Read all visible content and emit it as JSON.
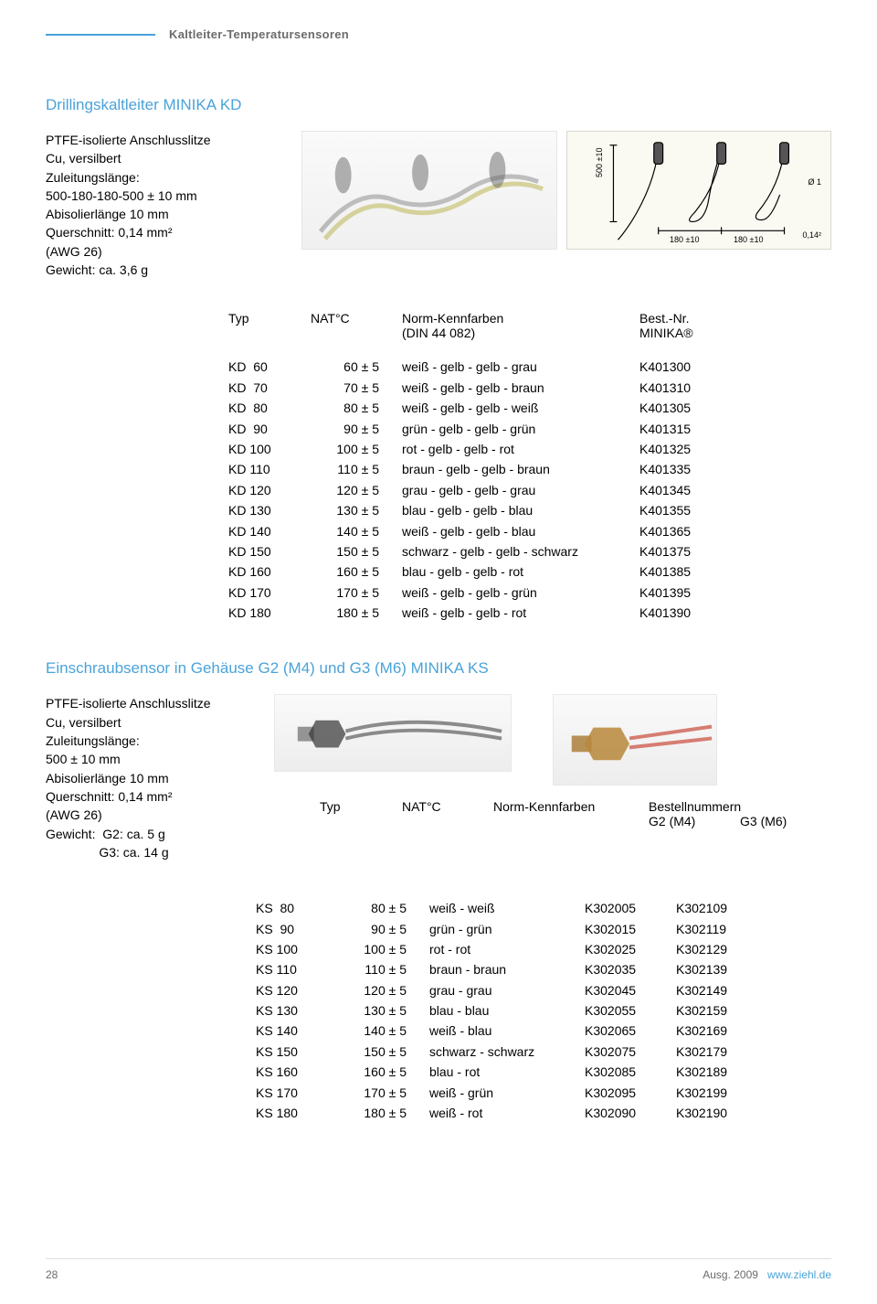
{
  "header": {
    "category": "Kaltleiter-Temperatursensoren",
    "line_color": "#4aa3d8"
  },
  "section1": {
    "title": "Drillingskaltleiter MINIKA KD",
    "specs": [
      "PTFE-isolierte Anschlusslitze",
      "Cu, versilbert",
      "Zuleitungslänge:",
      "500-180-180-500 ± 10 mm",
      "Abisolierlänge 10 mm",
      "Querschnitt: 0,14 mm²",
      "(AWG 26)",
      "Gewicht: ca. 3,6 g"
    ],
    "diagram": {
      "dim_height": "500 ±10",
      "dim_spacing_1": "180 ±10",
      "dim_spacing_2": "180 ±10",
      "diameter": "Ø 1",
      "cross": "0,14²"
    },
    "table": {
      "header": {
        "typ": "Typ",
        "nat": "NAT°C",
        "norm": "Norm-Kennfarben",
        "norm_sub": "(DIN 44 082)",
        "best": "Best.-Nr.",
        "best_sub": "MINIKA®"
      },
      "rows": [
        {
          "typ": "KD  60",
          "nat": "60 ± 5",
          "norm": "weiß - gelb - gelb - grau",
          "best": "K401300"
        },
        {
          "typ": "KD  70",
          "nat": "70 ± 5",
          "norm": "weiß - gelb - gelb - braun",
          "best": "K401310"
        },
        {
          "typ": "KD  80",
          "nat": "80 ± 5",
          "norm": "weiß - gelb - gelb - weiß",
          "best": "K401305"
        },
        {
          "typ": "KD  90",
          "nat": "90 ± 5",
          "norm": "grün - gelb - gelb - grün",
          "best": "K401315"
        },
        {
          "typ": "KD 100",
          "nat": "100 ± 5",
          "norm": "rot - gelb - gelb - rot",
          "best": "K401325"
        },
        {
          "typ": "KD 110",
          "nat": "110 ± 5",
          "norm": "braun - gelb - gelb - braun",
          "best": "K401335"
        },
        {
          "typ": "KD 120",
          "nat": "120 ± 5",
          "norm": "grau - gelb - gelb - grau",
          "best": "K401345"
        },
        {
          "typ": "KD 130",
          "nat": "130 ± 5",
          "norm": "blau - gelb - gelb - blau",
          "best": "K401355"
        },
        {
          "typ": "KD 140",
          "nat": "140 ± 5",
          "norm": "weiß - gelb - gelb - blau",
          "best": "K401365"
        },
        {
          "typ": "KD 150",
          "nat": "150 ± 5",
          "norm": "schwarz - gelb - gelb - schwarz",
          "best": "K401375"
        },
        {
          "typ": "KD 160",
          "nat": "160 ± 5",
          "norm": "blau - gelb - gelb - rot",
          "best": "K401385"
        },
        {
          "typ": "KD 170",
          "nat": "170 ± 5",
          "norm": "weiß - gelb - gelb - grün",
          "best": "K401395"
        },
        {
          "typ": "KD 180",
          "nat": "180 ± 5",
          "norm": "weiß - gelb - gelb - rot",
          "best": "K401390"
        }
      ]
    }
  },
  "section2": {
    "title": "Einschraubsensor in Gehäuse G2 (M4) und G3 (M6) MINIKA KS",
    "specs": [
      "PTFE-isolierte Anschlusslitze",
      "Cu, versilbert",
      "Zuleitungslänge:",
      "500 ± 10 mm",
      "Abisolierlänge 10 mm",
      "Querschnitt: 0,14 mm²",
      "(AWG 26)",
      "Gewicht:  G2: ca. 5 g",
      "               G3: ca. 14 g"
    ],
    "table": {
      "header": {
        "typ": "Typ",
        "nat": "NAT°C",
        "norm": "Norm-Kennfarben",
        "best": "Bestellnummern",
        "g2": "G2 (M4)",
        "g3": "G3 (M6)"
      },
      "rows": [
        {
          "typ": "KS  80",
          "nat": "80 ± 5",
          "norm": "weiß - weiß",
          "g2": "K302005",
          "g3": "K302109"
        },
        {
          "typ": "KS  90",
          "nat": "90 ± 5",
          "norm": "grün - grün",
          "g2": "K302015",
          "g3": "K302119"
        },
        {
          "typ": "KS 100",
          "nat": "100 ± 5",
          "norm": "rot -  rot",
          "g2": "K302025",
          "g3": "K302129"
        },
        {
          "typ": "KS 110",
          "nat": "110 ± 5",
          "norm": "braun - braun",
          "g2": "K302035",
          "g3": "K302139"
        },
        {
          "typ": "KS 120",
          "nat": "120 ± 5",
          "norm": "grau - grau",
          "g2": "K302045",
          "g3": "K302149"
        },
        {
          "typ": "KS 130",
          "nat": "130 ± 5",
          "norm": "blau - blau",
          "g2": "K302055",
          "g3": "K302159"
        },
        {
          "typ": "KS 140",
          "nat": "140 ± 5",
          "norm": "weiß - blau",
          "g2": "K302065",
          "g3": "K302169"
        },
        {
          "typ": "KS 150",
          "nat": "150 ± 5",
          "norm": "schwarz - schwarz",
          "g2": "K302075",
          "g3": "K302179"
        },
        {
          "typ": "KS 160",
          "nat": "160 ± 5",
          "norm": "blau - rot",
          "g2": "K302085",
          "g3": "K302189"
        },
        {
          "typ": "KS 170",
          "nat": "170 ± 5",
          "norm": "weiß - grün",
          "g2": "K302095",
          "g3": "K302199"
        },
        {
          "typ": "KS 180",
          "nat": "180 ± 5",
          "norm": "weiß - rot",
          "g2": "K302090",
          "g3": "K302190"
        }
      ]
    }
  },
  "footer": {
    "page": "28",
    "edition": "Ausg. 2009",
    "url": "www.ziehl.de"
  },
  "colors": {
    "accent": "#4aa3d8",
    "text": "#000000",
    "muted": "#6b6b6b",
    "diagram_bg": "#faf9f2"
  }
}
